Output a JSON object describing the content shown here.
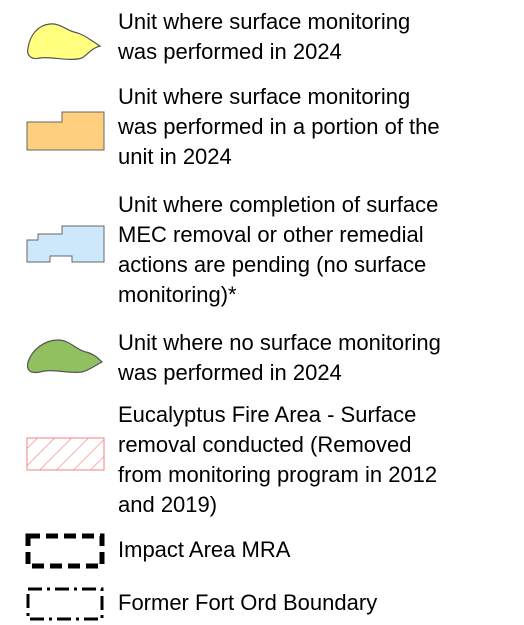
{
  "legend": {
    "items": [
      {
        "lines": [
          "Unit where surface monitoring",
          "was performed in 2024"
        ]
      },
      {
        "lines": [
          "Unit where surface monitoring",
          "was performed in a portion of the",
          "unit in 2024"
        ]
      },
      {
        "lines": [
          "Unit where completion of surface",
          "MEC removal or other remedial",
          "actions are pending (no surface",
          "monitoring)*"
        ]
      },
      {
        "lines": [
          "Unit where no surface monitoring",
          "was performed in 2024"
        ]
      },
      {
        "lines": [
          "Eucalyptus Fire Area - Surface",
          "removal conducted (Removed",
          "from monitoring program in 2012",
          "and 2019)"
        ]
      },
      {
        "lines": [
          "Impact Area MRA"
        ]
      },
      {
        "lines": [
          "Former Fort Ord Boundary"
        ]
      }
    ]
  }
}
